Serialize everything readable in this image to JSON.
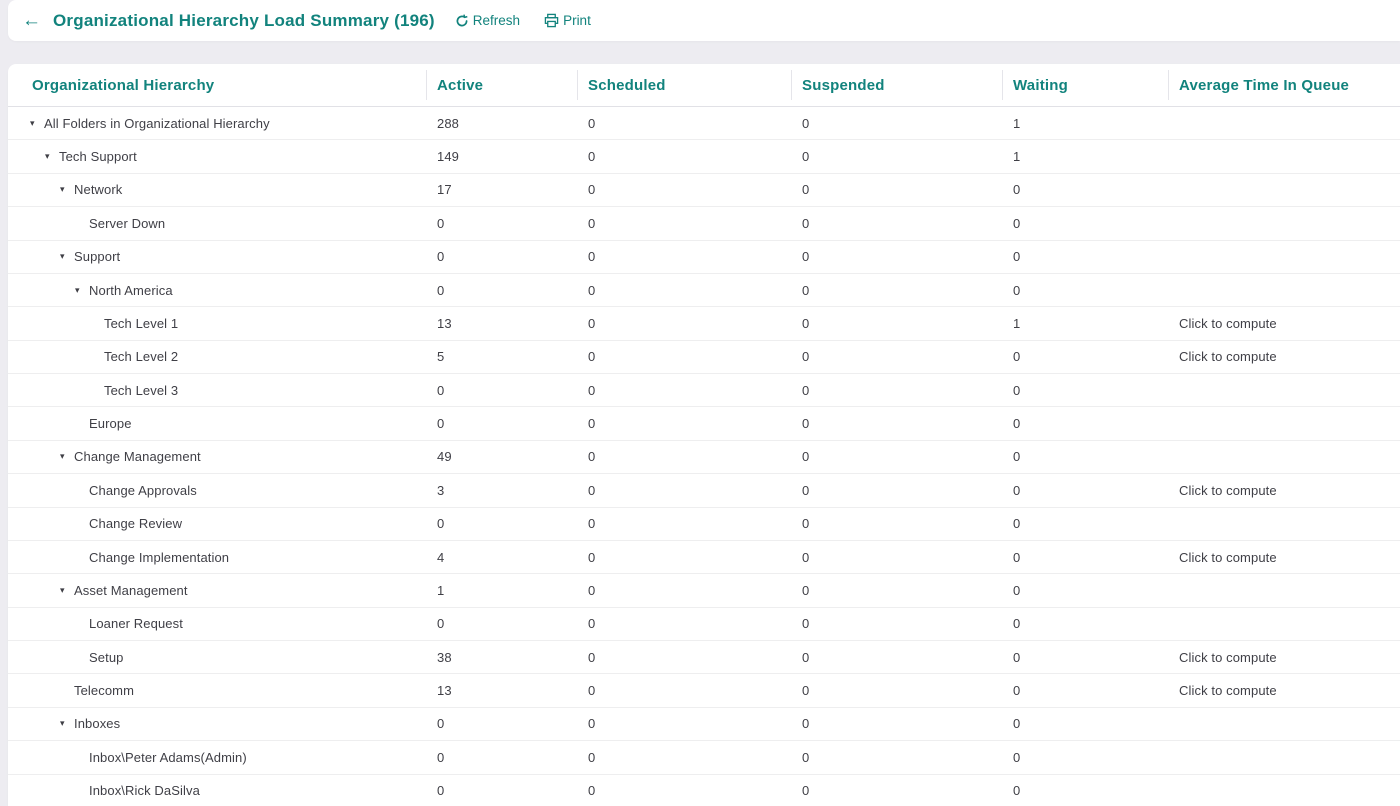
{
  "theme": {
    "accent": "#12837d",
    "text": "#3f3f46",
    "page_background": "#edecf1",
    "card_background": "#ffffff",
    "row_border": "#eeeeef"
  },
  "header": {
    "back_icon": "←",
    "title": "Organizational Hierarchy Load Summary (196)",
    "refresh_label": "Refresh",
    "print_label": "Print"
  },
  "table": {
    "columns": [
      "Organizational Hierarchy",
      "Active",
      "Scheduled",
      "Suspended",
      "Waiting",
      "Average Time In Queue"
    ],
    "expand_arrow_icon": "▾",
    "rows": [
      {
        "label": "All Folders in Organizational Hierarchy",
        "level": 0,
        "expandable": true,
        "active": "288",
        "scheduled": "0",
        "suspended": "0",
        "waiting": "1",
        "avg_time": ""
      },
      {
        "label": "Tech Support",
        "level": 1,
        "expandable": true,
        "active": "149",
        "scheduled": "0",
        "suspended": "0",
        "waiting": "1",
        "avg_time": ""
      },
      {
        "label": "Network",
        "level": 2,
        "expandable": true,
        "active": "17",
        "scheduled": "0",
        "suspended": "0",
        "waiting": "0",
        "avg_time": ""
      },
      {
        "label": "Server Down",
        "level": 3,
        "expandable": false,
        "active": "0",
        "scheduled": "0",
        "suspended": "0",
        "waiting": "0",
        "avg_time": ""
      },
      {
        "label": "Support",
        "level": 2,
        "expandable": true,
        "active": "0",
        "scheduled": "0",
        "suspended": "0",
        "waiting": "0",
        "avg_time": ""
      },
      {
        "label": "North America",
        "level": 3,
        "expandable": true,
        "active": "0",
        "scheduled": "0",
        "suspended": "0",
        "waiting": "0",
        "avg_time": ""
      },
      {
        "label": "Tech Level 1",
        "level": 4,
        "expandable": false,
        "active": "13",
        "scheduled": "0",
        "suspended": "0",
        "waiting": "1",
        "avg_time": "Click to compute"
      },
      {
        "label": "Tech Level 2",
        "level": 4,
        "expandable": false,
        "active": "5",
        "scheduled": "0",
        "suspended": "0",
        "waiting": "0",
        "avg_time": "Click to compute"
      },
      {
        "label": "Tech Level 3",
        "level": 4,
        "expandable": false,
        "active": "0",
        "scheduled": "0",
        "suspended": "0",
        "waiting": "0",
        "avg_time": ""
      },
      {
        "label": "Europe",
        "level": 3,
        "expandable": false,
        "active": "0",
        "scheduled": "0",
        "suspended": "0",
        "waiting": "0",
        "avg_time": ""
      },
      {
        "label": "Change Management",
        "level": 2,
        "expandable": true,
        "active": "49",
        "scheduled": "0",
        "suspended": "0",
        "waiting": "0",
        "avg_time": ""
      },
      {
        "label": "Change Approvals",
        "level": 3,
        "expandable": false,
        "active": "3",
        "scheduled": "0",
        "suspended": "0",
        "waiting": "0",
        "avg_time": "Click to compute"
      },
      {
        "label": "Change Review",
        "level": 3,
        "expandable": false,
        "active": "0",
        "scheduled": "0",
        "suspended": "0",
        "waiting": "0",
        "avg_time": ""
      },
      {
        "label": "Change Implementation",
        "level": 3,
        "expandable": false,
        "active": "4",
        "scheduled": "0",
        "suspended": "0",
        "waiting": "0",
        "avg_time": "Click to compute"
      },
      {
        "label": "Asset Management",
        "level": 2,
        "expandable": true,
        "active": "1",
        "scheduled": "0",
        "suspended": "0",
        "waiting": "0",
        "avg_time": ""
      },
      {
        "label": "Loaner Request",
        "level": 3,
        "expandable": false,
        "active": "0",
        "scheduled": "0",
        "suspended": "0",
        "waiting": "0",
        "avg_time": ""
      },
      {
        "label": "Setup",
        "level": 3,
        "expandable": false,
        "active": "38",
        "scheduled": "0",
        "suspended": "0",
        "waiting": "0",
        "avg_time": "Click to compute"
      },
      {
        "label": "Telecomm",
        "level": 2,
        "expandable": false,
        "active": "13",
        "scheduled": "0",
        "suspended": "0",
        "waiting": "0",
        "avg_time": "Click to compute"
      },
      {
        "label": "Inboxes",
        "level": 2,
        "expandable": true,
        "active": "0",
        "scheduled": "0",
        "suspended": "0",
        "waiting": "0",
        "avg_time": ""
      },
      {
        "label": "Inbox\\Peter Adams(Admin)",
        "level": 3,
        "expandable": false,
        "active": "0",
        "scheduled": "0",
        "suspended": "0",
        "waiting": "0",
        "avg_time": ""
      },
      {
        "label": "Inbox\\Rick DaSilva",
        "level": 3,
        "expandable": false,
        "active": "0",
        "scheduled": "0",
        "suspended": "0",
        "waiting": "0",
        "avg_time": ""
      }
    ]
  }
}
